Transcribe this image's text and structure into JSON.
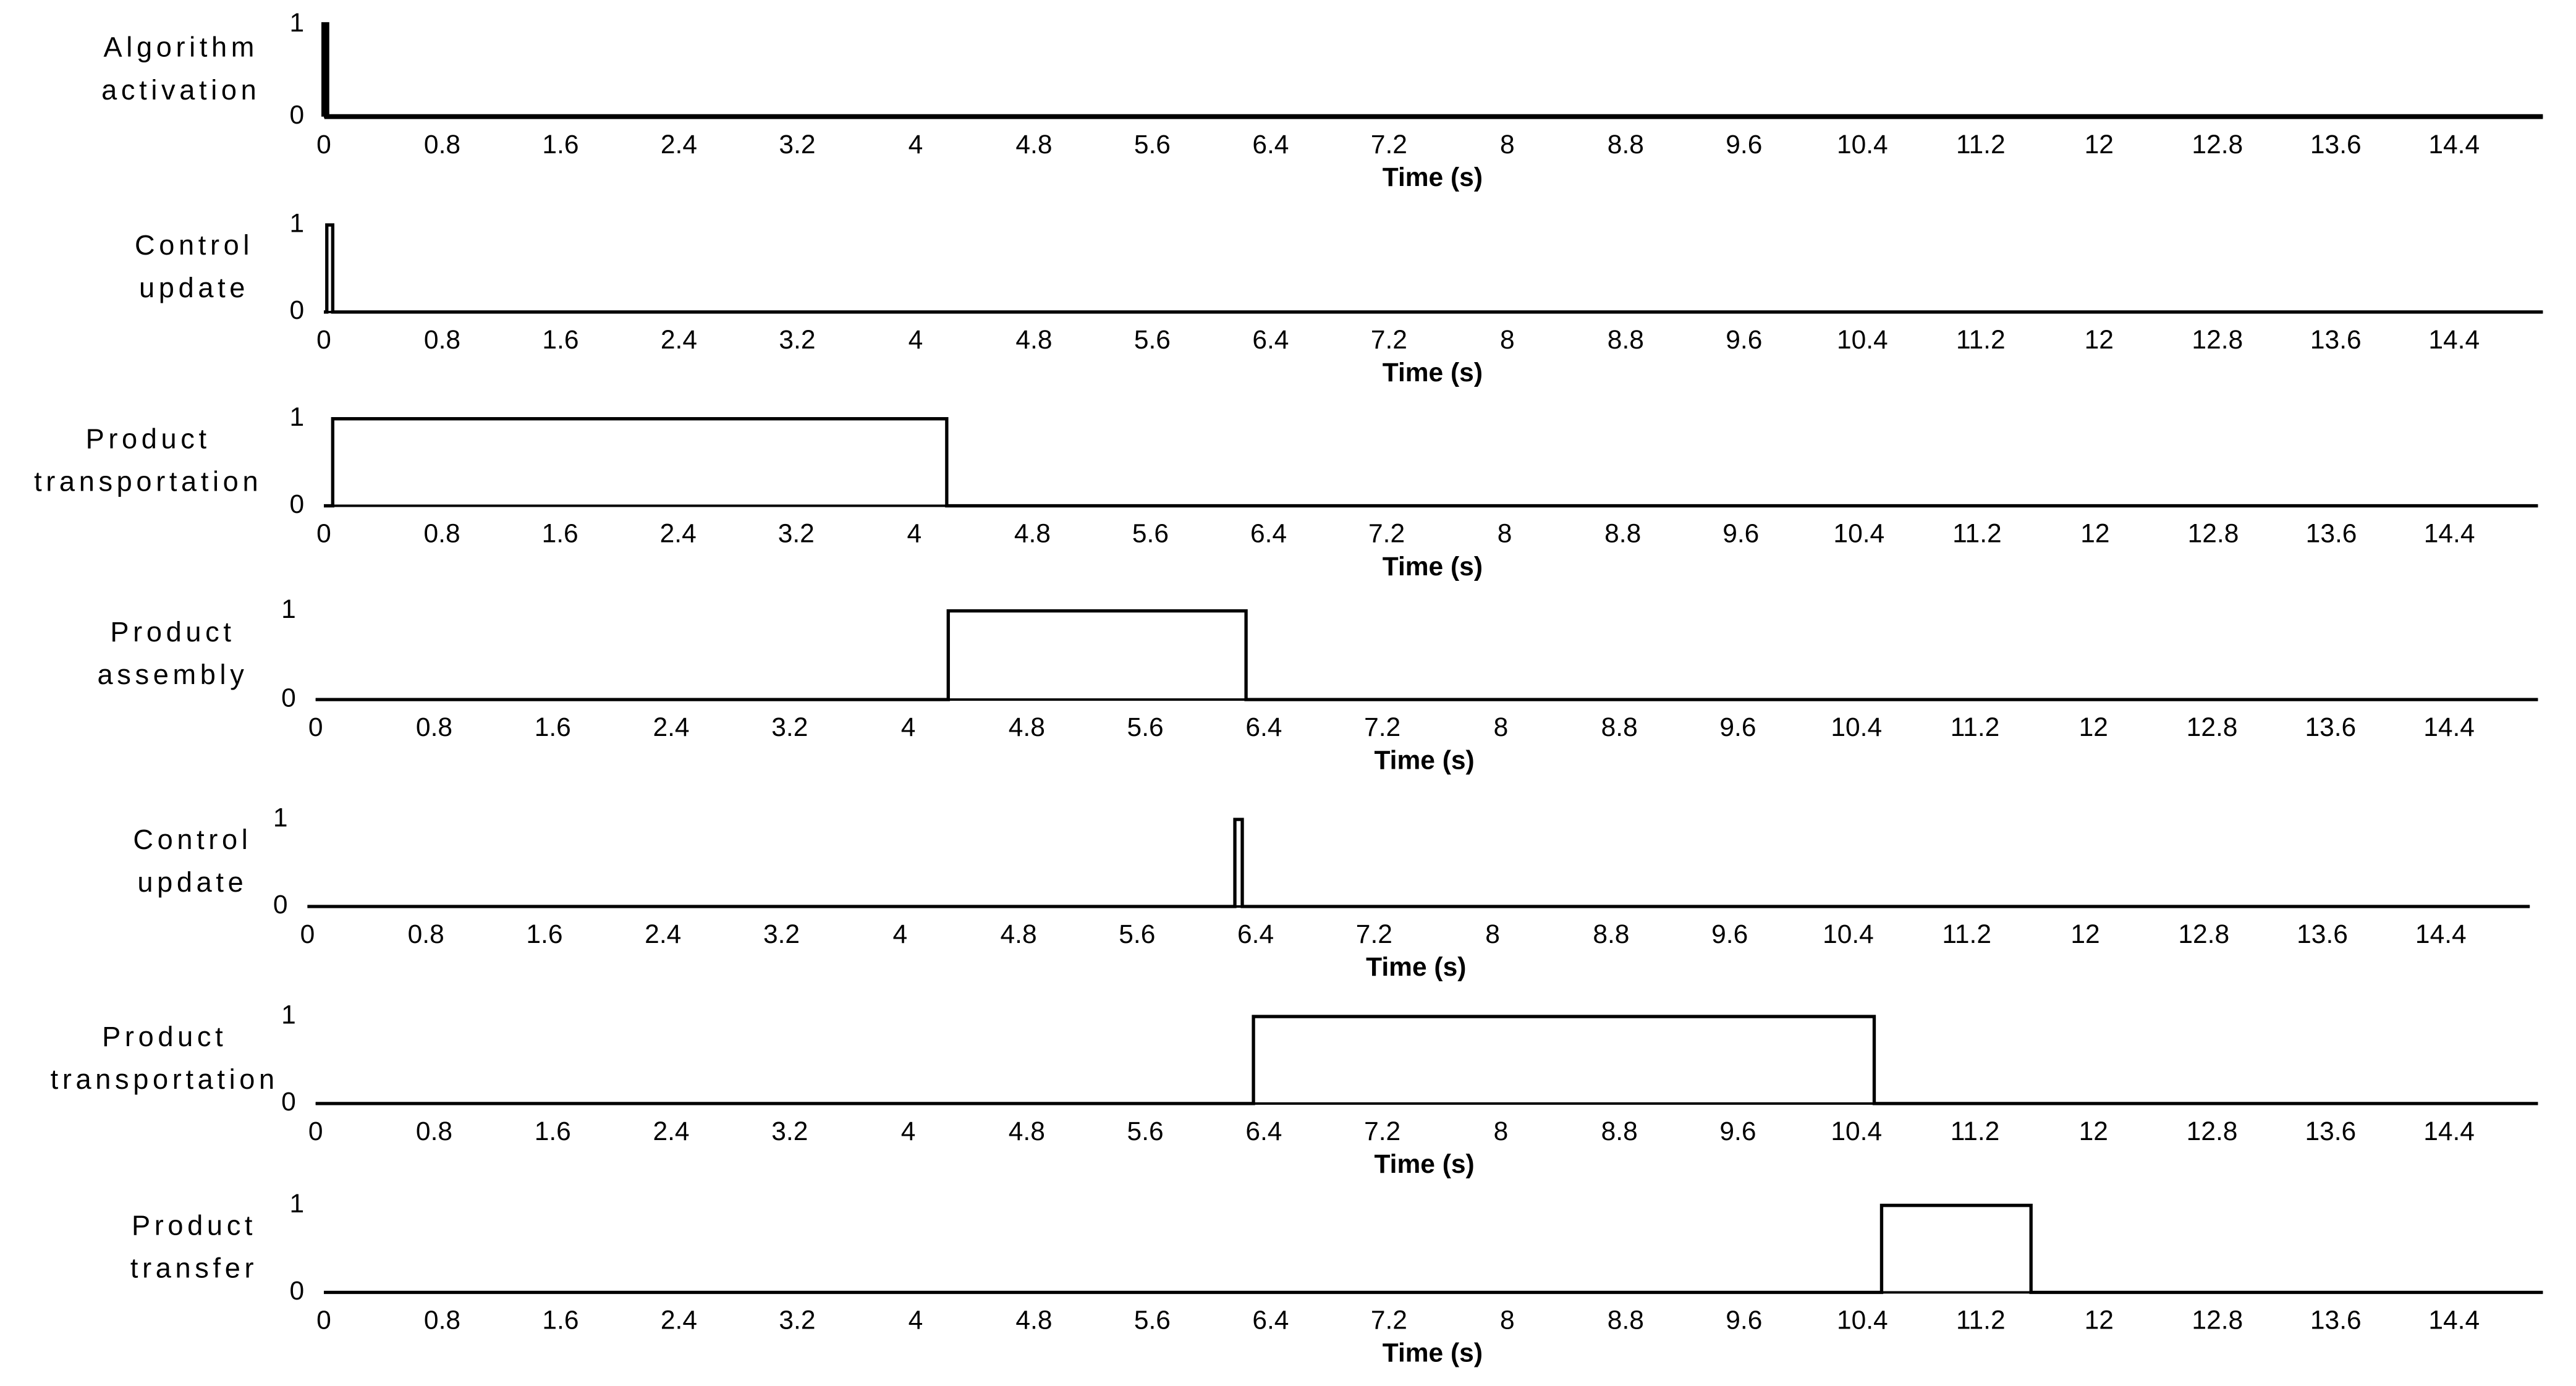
{
  "chart_data": [
    {
      "type": "line",
      "ylabel": [
        "Algorithm",
        "activation"
      ],
      "xlabel": "Time (s)",
      "color": "#000000",
      "linewidth": 3,
      "x": [
        0,
        0,
        0.02,
        0.02,
        15
      ],
      "values": [
        0,
        1,
        1,
        0,
        0
      ],
      "xlim": [
        0,
        15
      ],
      "xticks": [
        0,
        0.8,
        1.6,
        2.4,
        3.2,
        4,
        4.8,
        5.6,
        6.4,
        7.2,
        8,
        8.8,
        9.6,
        10.4,
        11.2,
        12,
        12.8,
        13.6,
        14.4
      ],
      "ylim": [
        0,
        1
      ],
      "yticks": [
        0,
        1
      ]
    },
    {
      "type": "line",
      "ylabel": [
        "Control",
        "update"
      ],
      "xlabel": "Time (s)",
      "color": "#000000",
      "linewidth": 2,
      "x": [
        0,
        0.02,
        0.02,
        0.06,
        0.06,
        15
      ],
      "values": [
        0,
        0,
        1,
        1,
        0,
        0
      ],
      "xlim": [
        0,
        15
      ],
      "xticks": [
        0,
        0.8,
        1.6,
        2.4,
        3.2,
        4,
        4.8,
        5.6,
        6.4,
        7.2,
        8,
        8.8,
        9.6,
        10.4,
        11.2,
        12,
        12.8,
        13.6,
        14.4
      ],
      "ylim": [
        0,
        1
      ],
      "yticks": [
        0,
        1
      ]
    },
    {
      "type": "line",
      "ylabel": [
        "Product",
        "transportation"
      ],
      "xlabel": "Time (s)",
      "color": "#000000",
      "linewidth": 2,
      "x": [
        0,
        0.06,
        0.06,
        4.22,
        4.22,
        15
      ],
      "values": [
        0,
        0,
        1,
        1,
        0,
        0
      ],
      "xlim": [
        0,
        15
      ],
      "xticks": [
        0,
        0.8,
        1.6,
        2.4,
        3.2,
        4,
        4.8,
        5.6,
        6.4,
        7.2,
        8,
        8.8,
        9.6,
        10.4,
        11.2,
        12,
        12.8,
        13.6,
        14.4
      ],
      "ylim": [
        0,
        1
      ],
      "yticks": [
        0,
        1
      ]
    },
    {
      "type": "line",
      "ylabel": [
        "Product",
        "assembly"
      ],
      "xlabel": "Time (s)",
      "color": "#000000",
      "linewidth": 2,
      "x": [
        0,
        4.27,
        4.27,
        6.28,
        6.28,
        15
      ],
      "values": [
        0,
        0,
        1,
        1,
        0,
        0
      ],
      "xlim": [
        0,
        15
      ],
      "xticks": [
        0,
        0.8,
        1.6,
        2.4,
        3.2,
        4,
        4.8,
        5.6,
        6.4,
        7.2,
        8,
        8.8,
        9.6,
        10.4,
        11.2,
        12,
        12.8,
        13.6,
        14.4
      ],
      "ylim": [
        0,
        1
      ],
      "yticks": [
        0,
        1
      ]
    },
    {
      "type": "line",
      "ylabel": [
        "Control",
        "update"
      ],
      "xlabel": "Time (s)",
      "color": "#000000",
      "linewidth": 2,
      "x": [
        0,
        6.26,
        6.26,
        6.31,
        6.31,
        15
      ],
      "values": [
        0,
        0,
        1,
        1,
        0,
        0
      ],
      "xlim": [
        0,
        15
      ],
      "xticks": [
        0,
        0.8,
        1.6,
        2.4,
        3.2,
        4,
        4.8,
        5.6,
        6.4,
        7.2,
        8,
        8.8,
        9.6,
        10.4,
        11.2,
        12,
        12.8,
        13.6,
        14.4
      ],
      "ylim": [
        0,
        1
      ],
      "yticks": [
        0,
        1
      ]
    },
    {
      "type": "line",
      "ylabel": [
        "Product",
        "transportation"
      ],
      "xlabel": "Time (s)",
      "color": "#000000",
      "linewidth": 2,
      "x": [
        0,
        6.33,
        6.33,
        10.52,
        10.52,
        15
      ],
      "values": [
        0,
        0,
        1,
        1,
        0,
        0
      ],
      "xlim": [
        0,
        15
      ],
      "xticks": [
        0,
        0.8,
        1.6,
        2.4,
        3.2,
        4,
        4.8,
        5.6,
        6.4,
        7.2,
        8,
        8.8,
        9.6,
        10.4,
        11.2,
        12,
        12.8,
        13.6,
        14.4
      ],
      "ylim": [
        0,
        1
      ],
      "yticks": [
        0,
        1
      ]
    },
    {
      "type": "line",
      "ylabel": [
        "Product",
        "transfer"
      ],
      "xlabel": "Time (s)",
      "color": "#000000",
      "linewidth": 2,
      "x": [
        0,
        10.53,
        10.53,
        11.54,
        11.54,
        15
      ],
      "values": [
        0,
        0,
        1,
        1,
        0,
        0
      ],
      "xlim": [
        0,
        15
      ],
      "xticks": [
        0,
        0.8,
        1.6,
        2.4,
        3.2,
        4,
        4.8,
        5.6,
        6.4,
        7.2,
        8,
        8.8,
        9.6,
        10.4,
        11.2,
        12,
        12.8,
        13.6,
        14.4
      ],
      "ylim": [
        0,
        1
      ],
      "yticks": [
        0,
        1
      ]
    }
  ]
}
